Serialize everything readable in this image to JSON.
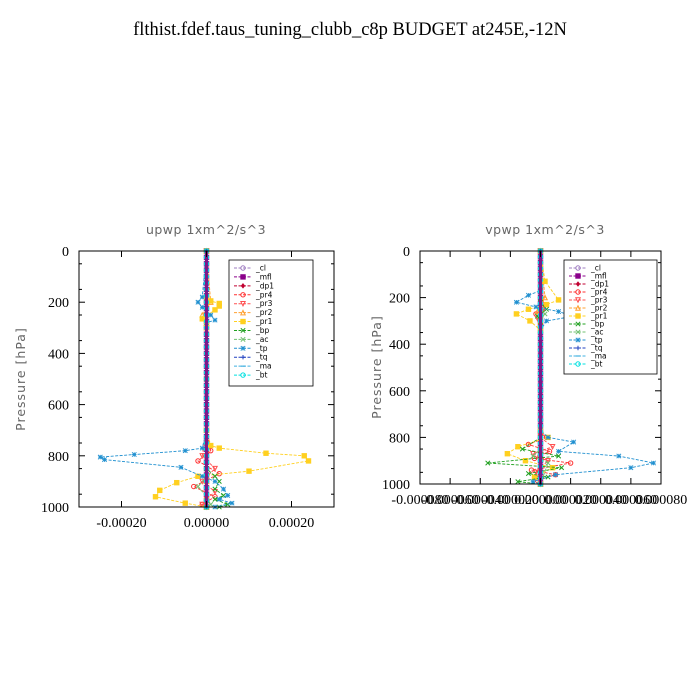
{
  "title": "flthist.fdef.taus_tuning_clubb_c8p  BUDGET at245E,-12N",
  "chart_data": [
    {
      "type": "line",
      "title": "upwp   1xm^2/s^3",
      "ylabel": "Pressure  [hPa]",
      "xlim": [
        -0.0003,
        0.0003
      ],
      "ylim": [
        1000,
        0
      ],
      "yticks": [
        0,
        200,
        400,
        600,
        800,
        1000
      ],
      "ytick_labels": [
        "0",
        "200",
        "400",
        "600",
        "800",
        "1000"
      ],
      "xticks": [
        -0.0002,
        0,
        0.0002
      ],
      "xtick_labels": [
        "-0.00020",
        "0.00000",
        "0.00020"
      ],
      "legend_position": "top-right",
      "series": [
        {
          "name": "_cl",
          "color": "#9e7cc1",
          "marker": "o",
          "x": [
            0,
            0,
            0,
            0,
            0,
            0,
            0,
            0
          ],
          "y": [
            0,
            150,
            300,
            500,
            700,
            850,
            950,
            1000
          ]
        },
        {
          "name": "_mfl",
          "color": "#8b008b",
          "marker": "s",
          "x": [
            0,
            0,
            0,
            0,
            0,
            0,
            0,
            0
          ],
          "y": [
            0,
            150,
            300,
            500,
            700,
            850,
            950,
            1000
          ]
        },
        {
          "name": "_dp1",
          "color": "#c00030",
          "marker": "d",
          "x": [
            0,
            0,
            0,
            0,
            0,
            0,
            0,
            0
          ],
          "y": [
            0,
            150,
            300,
            500,
            700,
            850,
            950,
            1000
          ]
        },
        {
          "name": "_pr4",
          "color": "#ff3030",
          "marker": "o",
          "x": [
            0,
            0,
            0,
            0,
            1e-05,
            -2e-05,
            3e-05,
            -3e-05,
            2e-05,
            -1e-05,
            0
          ],
          "y": [
            0,
            200,
            400,
            700,
            780,
            820,
            870,
            920,
            960,
            990,
            1000
          ]
        },
        {
          "name": "_pr3",
          "color": "#ff5050",
          "marker": "v",
          "x": [
            0,
            0,
            0,
            -1e-05,
            2e-05,
            -1e-05,
            2e-05,
            0,
            -1e-05,
            0
          ],
          "y": [
            0,
            300,
            700,
            800,
            850,
            900,
            940,
            970,
            990,
            1000
          ]
        },
        {
          "name": "_pr2",
          "color": "#ffa030",
          "marker": "^",
          "x": [
            0,
            1e-05,
            -1e-05,
            0,
            0,
            0,
            0,
            0
          ],
          "y": [
            0,
            200,
            250,
            300,
            700,
            900,
            960,
            1000
          ]
        },
        {
          "name": "_pr1",
          "color": "#ffd020",
          "marker": "s",
          "x": [
            0,
            0,
            1e-05,
            3e-05,
            3e-05,
            2e-05,
            -1e-05,
            0,
            0,
            1e-05,
            3e-05,
            0.00014,
            0.00023,
            0.00024,
            0.0001,
            -2e-05,
            -7e-05,
            -0.00011,
            -0.00012,
            -5e-05,
            0
          ],
          "y": [
            0,
            180,
            195,
            205,
            215,
            230,
            265,
            285,
            700,
            760,
            770,
            790,
            800,
            820,
            860,
            880,
            905,
            935,
            960,
            985,
            1000
          ]
        },
        {
          "name": "_bp",
          "color": "#20a020",
          "marker": "x",
          "x": [
            0,
            0,
            0,
            2e-05,
            3e-05,
            2e-05,
            4e-05,
            2e-05,
            5e-05,
            3e-05,
            0
          ],
          "y": [
            0,
            500,
            850,
            880,
            900,
            930,
            955,
            970,
            990,
            1000,
            1000
          ]
        },
        {
          "name": "_ac",
          "color": "#70c070",
          "marker": "x",
          "x": [
            0,
            0,
            0,
            -2e-05,
            0,
            1e-05,
            0
          ],
          "y": [
            0,
            700,
            880,
            920,
            960,
            990,
            1000
          ]
        },
        {
          "name": "_tp",
          "color": "#2090d0",
          "marker": "*",
          "x": [
            0,
            -1e-05,
            -2e-05,
            -1e-05,
            1e-05,
            2e-05,
            0,
            0,
            -1e-05,
            -5e-05,
            -0.00017,
            -0.00025,
            -0.00024,
            -6e-05,
            -1e-05,
            2e-05,
            4e-05,
            5e-05,
            3e-05,
            6e-05,
            2e-05,
            0
          ],
          "y": [
            0,
            180,
            200,
            220,
            250,
            270,
            280,
            700,
            770,
            780,
            795,
            805,
            815,
            845,
            880,
            900,
            930,
            955,
            970,
            985,
            1000,
            1000
          ]
        },
        {
          "name": "_tq",
          "color": "#2040c0",
          "marker": "+",
          "x": [
            0,
            0,
            0,
            0,
            0
          ],
          "y": [
            0,
            300,
            600,
            900,
            1000
          ]
        },
        {
          "name": "_ma",
          "color": "#40b0e0",
          "marker": "-",
          "x": [
            0,
            0,
            0,
            0,
            0
          ],
          "y": [
            0,
            300,
            600,
            900,
            1000
          ]
        },
        {
          "name": "_bt",
          "color": "#00e0e0",
          "marker": "o",
          "x": [
            0,
            0,
            0,
            0,
            0
          ],
          "y": [
            0,
            300,
            600,
            900,
            1000
          ]
        }
      ]
    },
    {
      "type": "line",
      "title": "vpwp   1xm^2/s^3",
      "ylabel": "Pressure  [hPa]",
      "xlim": [
        -8e-05,
        8e-05
      ],
      "ylim": [
        1000,
        0
      ],
      "yticks": [
        0,
        200,
        400,
        600,
        800,
        1000
      ],
      "ytick_labels": [
        "0",
        "200",
        "400",
        "600",
        "800",
        "1000"
      ],
      "xticks": [
        -8e-05,
        -6e-05,
        -4e-05,
        -2e-05,
        0,
        2e-05,
        4e-05,
        6e-05,
        8e-05
      ],
      "xtick_labels": [
        "-0.000080",
        "-0.000060",
        "-0.000040",
        "-0.000020",
        "0.000000",
        "0.000020",
        "0.000040",
        "0.000060",
        "0.000080"
      ],
      "legend_position": "top-right",
      "series": [
        {
          "name": "_cl",
          "color": "#9e7cc1",
          "marker": "o",
          "x": [
            0,
            0,
            0,
            0,
            0,
            0,
            0,
            0
          ],
          "y": [
            0,
            150,
            300,
            500,
            700,
            850,
            950,
            1000
          ]
        },
        {
          "name": "_mfl",
          "color": "#8b008b",
          "marker": "s",
          "x": [
            0,
            0,
            0,
            0,
            0,
            0,
            0,
            0
          ],
          "y": [
            0,
            150,
            300,
            500,
            700,
            850,
            950,
            1000
          ]
        },
        {
          "name": "_dp1",
          "color": "#c00030",
          "marker": "d",
          "x": [
            0,
            0,
            0,
            0,
            0,
            0,
            0,
            0
          ],
          "y": [
            0,
            150,
            300,
            500,
            700,
            850,
            950,
            1000
          ]
        },
        {
          "name": "_pr4",
          "color": "#ff3030",
          "marker": "o",
          "x": [
            0,
            2e-06,
            -3e-06,
            0,
            0,
            4e-06,
            -8e-06,
            6e-06,
            -4e-06,
            2e-05,
            -6e-06,
            1e-05,
            -2e-06,
            0
          ],
          "y": [
            0,
            240,
            270,
            300,
            780,
            800,
            830,
            860,
            890,
            910,
            940,
            960,
            985,
            1000
          ]
        },
        {
          "name": "_pr3",
          "color": "#ff5050",
          "marker": "v",
          "x": [
            0,
            2e-06,
            -2e-06,
            0,
            0,
            8e-06,
            -5e-06,
            5e-06,
            -3e-06,
            0
          ],
          "y": [
            0,
            250,
            290,
            320,
            800,
            840,
            870,
            900,
            950,
            1000
          ]
        },
        {
          "name": "_pr2",
          "color": "#ffa030",
          "marker": "^",
          "x": [
            0,
            3e-06,
            -2e-06,
            0,
            0
          ],
          "y": [
            0,
            200,
            260,
            300,
            1000
          ]
        },
        {
          "name": "_pr1",
          "color": "#ffd020",
          "marker": "s",
          "x": [
            0,
            3e-06,
            1.2e-05,
            4e-06,
            -8e-06,
            -1.6e-05,
            -7e-06,
            0,
            0,
            5e-06,
            -1.5e-05,
            -2.2e-05,
            -1e-05,
            8e-06,
            -4e-06,
            0
          ],
          "y": [
            0,
            130,
            210,
            230,
            250,
            270,
            300,
            340,
            770,
            800,
            840,
            870,
            900,
            930,
            970,
            1000
          ]
        },
        {
          "name": "_bp",
          "color": "#20a020",
          "marker": "x",
          "x": [
            0,
            0,
            4e-06,
            -2e-06,
            0,
            0,
            -1.2e-05,
            1.2e-05,
            -3.5e-05,
            1.4e-05,
            -8e-06,
            5e-06,
            -1.5e-05,
            0
          ],
          "y": [
            0,
            220,
            250,
            280,
            320,
            800,
            850,
            880,
            910,
            930,
            955,
            970,
            990,
            1000
          ]
        },
        {
          "name": "_ac",
          "color": "#70c070",
          "marker": "x",
          "x": [
            0,
            0,
            3e-06,
            0,
            0,
            -5e-06,
            5e-06,
            0
          ],
          "y": [
            0,
            250,
            270,
            300,
            850,
            880,
            910,
            1000
          ]
        },
        {
          "name": "_tp",
          "color": "#2090d0",
          "marker": "*",
          "x": [
            0,
            0,
            -8e-06,
            -1.6e-05,
            -3e-06,
            1.2e-05,
            2.2e-05,
            4e-06,
            0,
            0,
            5e-06,
            2.2e-05,
            1.2e-05,
            5.2e-05,
            7.5e-05,
            6e-05,
            1e-05,
            -5e-06,
            0
          ],
          "y": [
            0,
            170,
            190,
            220,
            240,
            260,
            280,
            300,
            340,
            770,
            800,
            820,
            860,
            880,
            910,
            930,
            960,
            990,
            1000
          ]
        },
        {
          "name": "_tq",
          "color": "#2040c0",
          "marker": "+",
          "x": [
            0,
            0,
            0,
            0,
            0
          ],
          "y": [
            0,
            300,
            600,
            900,
            1000
          ]
        },
        {
          "name": "_ma",
          "color": "#40b0e0",
          "marker": "-",
          "x": [
            0,
            0,
            0,
            0,
            0
          ],
          "y": [
            0,
            300,
            600,
            900,
            1000
          ]
        },
        {
          "name": "_bt",
          "color": "#00e0e0",
          "marker": "o",
          "x": [
            0,
            0,
            0,
            0,
            0
          ],
          "y": [
            0,
            300,
            600,
            900,
            1000
          ]
        }
      ]
    }
  ]
}
